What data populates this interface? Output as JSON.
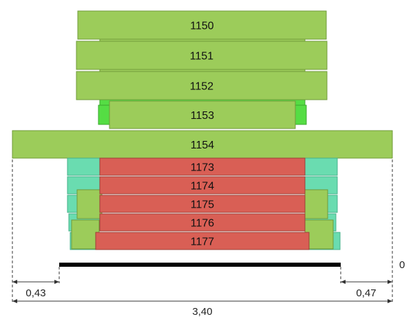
{
  "upper_blocks": [
    {
      "label": "1150"
    },
    {
      "label": "1151"
    },
    {
      "label": "1152"
    },
    {
      "label": "1153"
    },
    {
      "label": "1154"
    }
  ],
  "lower_blocks": [
    {
      "label": "1173"
    },
    {
      "label": "1174"
    },
    {
      "label": "1175"
    },
    {
      "label": "1176"
    },
    {
      "label": "1177"
    }
  ],
  "dimensions": {
    "left_offset": "0,43",
    "right_offset": "0,47",
    "total_width": "3,40",
    "base_level": "0"
  },
  "colors": {
    "upper_fill": "#9ccc5a",
    "upper_stroke": "#6f9a3a",
    "bright_green": "#55dd44",
    "lower_fill": "#d95f55",
    "lower_stroke": "#9c3f36",
    "teal_fill": "#6adcb0",
    "teal_stroke": "#44b08a",
    "base_bar": "#000000",
    "dim_line": "#333333"
  }
}
